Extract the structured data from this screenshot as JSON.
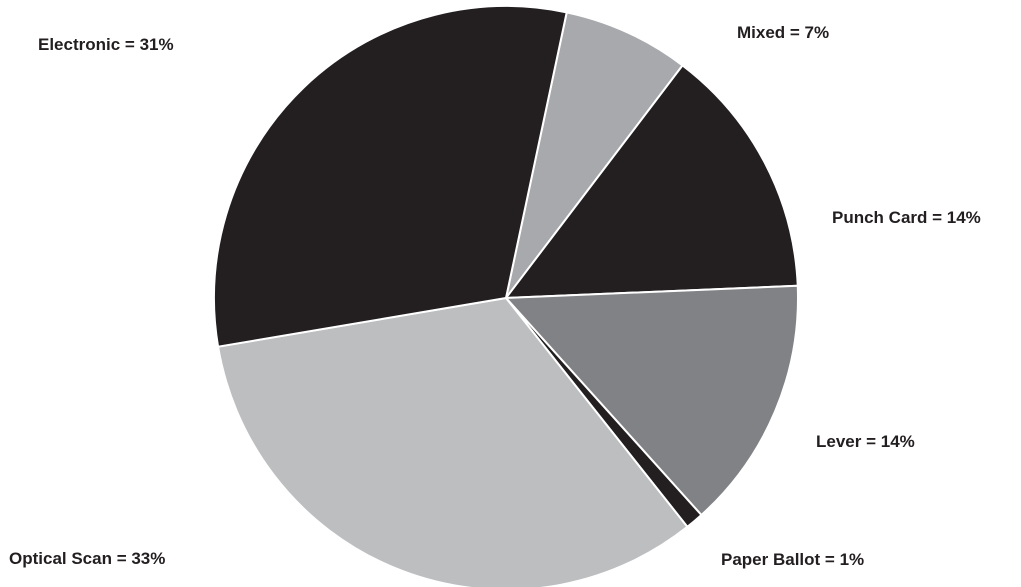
{
  "chart_data": {
    "type": "pie",
    "title": "",
    "slices": [
      {
        "label": "Electronic =  31%",
        "value": 31,
        "color": "#231f20"
      },
      {
        "label": "Mixed =  7%",
        "value": 7,
        "color": "#a7a9ac"
      },
      {
        "label": "Punch Card = 14%",
        "value": 14,
        "color": "#231f20"
      },
      {
        "label": "Lever = 14%",
        "value": 14,
        "color": "#808285"
      },
      {
        "label": "Paper Ballot = 1%",
        "value": 1,
        "color": "#231f20"
      },
      {
        "label": "Optical Scan =  33%",
        "value": 33,
        "color": "#bcbec0"
      }
    ],
    "start_slice": "Mixed",
    "direction": "clockwise"
  }
}
